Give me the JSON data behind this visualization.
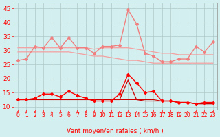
{
  "x": [
    0,
    1,
    2,
    3,
    4,
    5,
    6,
    7,
    8,
    9,
    10,
    11,
    12,
    13,
    14,
    15,
    16,
    17,
    18,
    19,
    20,
    21,
    22,
    23
  ],
  "series": [
    {
      "y": [
        26.5,
        27,
        31.5,
        31,
        34.5,
        31,
        34.5,
        31,
        31,
        29,
        31.5,
        31.5,
        32,
        44.5,
        39.5,
        29,
        28,
        26,
        26,
        27,
        27,
        31.5,
        29.5,
        33
      ],
      "color": "#f08080",
      "linewidth": 1.0,
      "marker": "D",
      "markersize": 2.0,
      "zorder": 3
    },
    {
      "y": [
        31,
        31,
        31,
        31,
        31,
        31,
        31,
        31,
        31,
        30.5,
        31,
        31,
        31,
        31,
        30.5,
        30,
        29.5,
        29,
        29,
        28.5,
        28.5,
        28.5,
        28.5,
        28.5
      ],
      "color": "#f4a0a0",
      "linewidth": 0.9,
      "marker": null,
      "markersize": 0,
      "zorder": 2
    },
    {
      "y": [
        29.5,
        29.5,
        29.5,
        29.5,
        29.5,
        29.5,
        29.5,
        29,
        28.5,
        28,
        28,
        27.5,
        27,
        26.5,
        26.5,
        26,
        25.5,
        25.5,
        25.5,
        25.5,
        25.5,
        25.5,
        25.5,
        25.5
      ],
      "color": "#f4a0a0",
      "linewidth": 0.9,
      "marker": null,
      "markersize": 0,
      "zorder": 2
    },
    {
      "y": [
        12.5,
        12.5,
        13,
        14.5,
        14.5,
        13.5,
        15.5,
        14,
        13,
        12,
        12,
        12,
        14.5,
        21.5,
        18.5,
        15,
        15.5,
        12,
        12,
        11.5,
        11.5,
        11,
        11.5,
        11.5
      ],
      "color": "#ff0000",
      "linewidth": 1.0,
      "marker": "D",
      "markersize": 2.0,
      "zorder": 4
    },
    {
      "y": [
        12.5,
        12.5,
        12.5,
        12.5,
        12.5,
        12.5,
        12.5,
        12.5,
        12.5,
        12.5,
        12.5,
        12.5,
        12.5,
        19.5,
        12.5,
        12,
        12,
        12,
        12,
        11.5,
        11.5,
        11,
        11,
        11
      ],
      "color": "#cc0000",
      "linewidth": 0.9,
      "marker": null,
      "markersize": 0,
      "zorder": 3
    },
    {
      "y": [
        12.5,
        12.5,
        12.5,
        12.5,
        12.5,
        12.5,
        12.5,
        12.5,
        12.5,
        12.5,
        12.5,
        12.5,
        12.5,
        12.5,
        12.5,
        12.5,
        12.5,
        12,
        12,
        11.5,
        11.5,
        11,
        11,
        11
      ],
      "color": "#cc0000",
      "linewidth": 0.8,
      "marker": null,
      "markersize": 0,
      "zorder": 3
    }
  ],
  "arrow_color": "#ff4444",
  "xlim": [
    -0.5,
    23.5
  ],
  "ylim": [
    9,
    47
  ],
  "yticks": [
    10,
    15,
    20,
    25,
    30,
    35,
    40,
    45
  ],
  "xticks": [
    0,
    1,
    2,
    3,
    4,
    5,
    6,
    7,
    8,
    9,
    10,
    11,
    12,
    13,
    14,
    15,
    16,
    17,
    18,
    19,
    20,
    21,
    22,
    23
  ],
  "xlabel": "Vent moyen/en rafales ( km/h )",
  "xlabel_color": "#ff0000",
  "xlabel_fontsize": 6.5,
  "ytick_fontsize": 6.5,
  "xtick_fontsize": 5.5,
  "grid_color": "#b0c8c8",
  "background_color": "#d4efef",
  "tick_color": "#ff0000",
  "spine_color": "#909090"
}
